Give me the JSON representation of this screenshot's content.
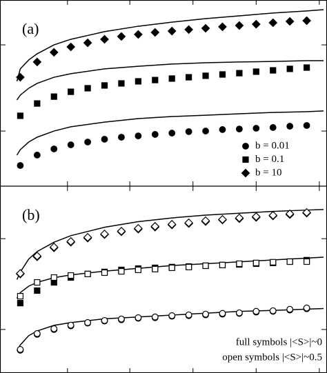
{
  "chart_data": [
    {
      "type": "scatter",
      "label": "(a)",
      "xlim": [
        0,
        19
      ],
      "ylim": [
        0,
        10
      ],
      "xticks": [
        3.8,
        7.5,
        11.25,
        15,
        18.75
      ],
      "yticks": [
        2.96,
        7.59
      ],
      "x": [
        1,
        2,
        3,
        4,
        5,
        6,
        7,
        8,
        9,
        10,
        11,
        12,
        13,
        14,
        15,
        16,
        17,
        18
      ],
      "series": [
        {
          "name": "b = 0.01",
          "marker": "circle",
          "filled": true,
          "color": "#000000",
          "values": [
            1.11,
            1.67,
            2.0,
            2.22,
            2.37,
            2.52,
            2.63,
            2.7,
            2.78,
            2.85,
            2.93,
            2.96,
            3.04,
            3.07,
            3.11,
            3.15,
            3.22,
            3.26
          ]
        },
        {
          "name": "b = 0.1",
          "marker": "square",
          "filled": true,
          "color": "#000000",
          "values": [
            3.78,
            4.44,
            4.81,
            5.07,
            5.26,
            5.41,
            5.52,
            5.63,
            5.7,
            5.78,
            5.85,
            5.93,
            6.0,
            6.07,
            6.15,
            6.22,
            6.3,
            6.37
          ]
        },
        {
          "name": "b = 10",
          "marker": "diamond",
          "filled": true,
          "color": "#000000",
          "values": [
            5.85,
            6.67,
            7.19,
            7.48,
            7.7,
            7.89,
            8.04,
            8.15,
            8.26,
            8.33,
            8.41,
            8.48,
            8.56,
            8.63,
            8.7,
            8.78,
            8.85,
            8.89
          ]
        }
      ],
      "curves": [
        {
          "x": [
            0.8,
            1,
            1.5,
            2,
            3,
            4,
            6,
            8,
            10,
            12,
            14,
            16,
            18,
            19
          ],
          "values": [
            1.67,
            1.96,
            2.37,
            2.63,
            2.96,
            3.19,
            3.44,
            3.63,
            3.74,
            3.81,
            3.89,
            3.96,
            4.0,
            4.04
          ]
        },
        {
          "x": [
            0.8,
            1,
            1.5,
            2,
            3,
            4,
            6,
            8,
            10,
            12,
            14,
            16,
            18,
            19
          ],
          "values": [
            4.63,
            4.89,
            5.26,
            5.52,
            5.85,
            6.04,
            6.3,
            6.44,
            6.56,
            6.63,
            6.67,
            6.7,
            6.74,
            6.74
          ]
        },
        {
          "x": [
            0.8,
            1,
            1.5,
            2,
            3,
            4,
            6,
            8,
            10,
            12,
            14,
            16,
            18,
            19
          ],
          "values": [
            5.63,
            6.3,
            6.78,
            7.11,
            7.59,
            7.89,
            8.3,
            8.59,
            8.81,
            9.0,
            9.15,
            9.3,
            9.41,
            9.48
          ]
        }
      ]
    },
    {
      "type": "scatter",
      "label": "(b)",
      "xlim": [
        0,
        19
      ],
      "ylim": [
        0,
        10
      ],
      "xticks": [
        3.8,
        7.5,
        11.25,
        15,
        18.75
      ],
      "yticks": [
        2.33,
        7.19
      ],
      "x": [
        1,
        2,
        3,
        4,
        5,
        6,
        7,
        8,
        9,
        10,
        11,
        12,
        13,
        14,
        15,
        16,
        17,
        18
      ],
      "annotations": [
        "full symbols |<S>|~0",
        "open symbols |<S>|~0.5"
      ],
      "series": [
        {
          "marker": "circle",
          "filled": true,
          "color": "#000000",
          "values": [
            1.22,
            2.07,
            2.33,
            2.52,
            2.67,
            2.78,
            2.85,
            2.93,
            2.96,
            3.04,
            3.07,
            3.11,
            3.15,
            3.19,
            3.26,
            3.3,
            3.37,
            3.44
          ]
        },
        {
          "marker": "circle",
          "filled": false,
          "color": "#000000",
          "values": [
            1.26,
            2.11,
            2.37,
            2.56,
            2.7,
            2.81,
            2.89,
            2.96,
            3.0,
            3.07,
            3.11,
            3.15,
            3.19,
            3.22,
            3.3,
            3.33,
            3.41,
            3.48
          ]
        },
        {
          "marker": "square",
          "filled": true,
          "color": "#000000",
          "values": [
            3.74,
            4.41,
            4.85,
            5.11,
            5.3,
            5.41,
            5.52,
            5.59,
            5.63,
            5.67,
            5.7,
            5.74,
            5.78,
            5.81,
            5.85,
            5.89,
            5.96,
            6.04
          ]
        },
        {
          "marker": "square",
          "filled": false,
          "color": "#000000",
          "values": [
            4.11,
            4.85,
            5.11,
            5.22,
            5.3,
            5.37,
            5.44,
            5.52,
            5.56,
            5.63,
            5.67,
            5.74,
            5.78,
            5.85,
            5.89,
            5.93,
            5.96,
            5.96
          ]
        },
        {
          "marker": "diamond",
          "filled": true,
          "color": "#000000",
          "values": [
            5.3,
            6.22,
            6.7,
            7.0,
            7.22,
            7.41,
            7.56,
            7.7,
            7.81,
            7.93,
            8.0,
            8.11,
            8.19,
            8.26,
            8.33,
            8.41,
            8.48,
            8.56
          ]
        },
        {
          "marker": "diamond",
          "filled": false,
          "color": "#000000",
          "values": [
            5.33,
            6.26,
            6.74,
            7.04,
            7.26,
            7.44,
            7.59,
            7.74,
            7.85,
            7.96,
            8.04,
            8.15,
            8.22,
            8.3,
            8.37,
            8.44,
            8.52,
            8.59
          ]
        }
      ],
      "curves": [
        {
          "x": [
            0.8,
            1,
            1.5,
            2,
            3,
            4,
            6,
            8,
            10,
            12,
            14,
            16,
            18,
            19
          ],
          "values": [
            1.2,
            1.5,
            2.0,
            2.25,
            2.55,
            2.7,
            2.9,
            3.0,
            3.1,
            3.2,
            3.3,
            3.35,
            3.42,
            3.45
          ]
        },
        {
          "x": [
            0.8,
            1,
            1.5,
            2,
            3,
            4,
            6,
            8,
            10,
            12,
            14,
            16,
            18,
            19
          ],
          "values": [
            4.0,
            4.3,
            4.65,
            4.85,
            5.1,
            5.25,
            5.45,
            5.6,
            5.75,
            5.85,
            5.95,
            6.05,
            6.15,
            6.2
          ]
        },
        {
          "x": [
            0.8,
            1,
            1.5,
            2,
            3,
            4,
            6,
            8,
            10,
            12,
            14,
            16,
            18,
            19
          ],
          "values": [
            5.0,
            5.4,
            6.1,
            6.5,
            7.0,
            7.35,
            7.8,
            8.1,
            8.3,
            8.45,
            8.55,
            8.65,
            8.72,
            8.75
          ]
        }
      ]
    }
  ]
}
